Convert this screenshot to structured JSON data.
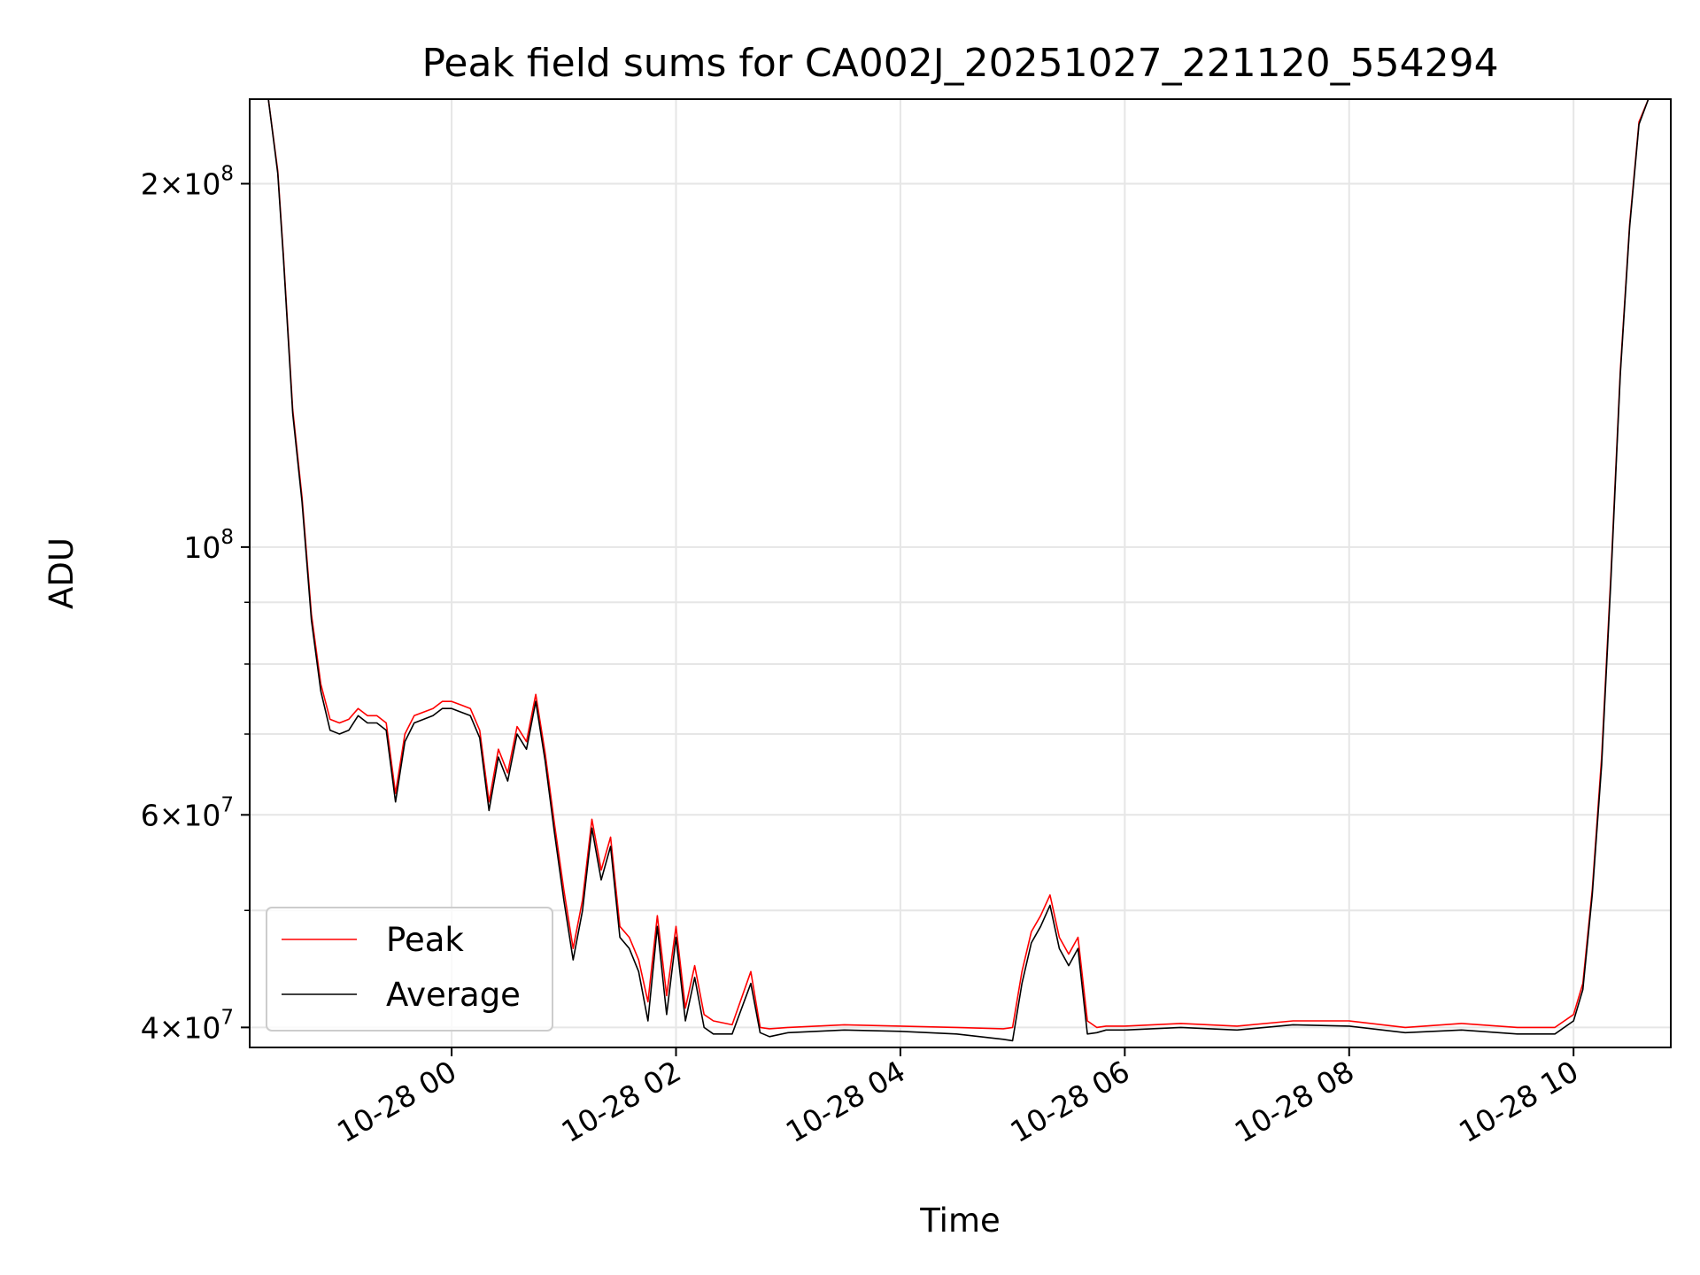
{
  "chart_data": {
    "type": "line",
    "title": "Peak field sums for CA002J_20251027_221120_554294",
    "xlabel": "Time",
    "ylabel": "ADU",
    "yscale": "log",
    "xlim": [
      "2025-10-27 22:12",
      "2025-10-28 10:52"
    ],
    "ylim": [
      38500000,
      235000000
    ],
    "grid": true,
    "legend_position": "lower-left",
    "x_ticks": [
      {
        "value": "2025-10-28 00:00",
        "label": "10-28 00"
      },
      {
        "value": "2025-10-28 02:00",
        "label": "10-28 02"
      },
      {
        "value": "2025-10-28 04:00",
        "label": "10-28 04"
      },
      {
        "value": "2025-10-28 06:00",
        "label": "10-28 06"
      },
      {
        "value": "2025-10-28 08:00",
        "label": "10-28 08"
      },
      {
        "value": "2025-10-28 10:00",
        "label": "10-28 10"
      }
    ],
    "y_ticks": [
      {
        "value": 40000000,
        "mantissa": "4",
        "exponent": "7"
      },
      {
        "value": 60000000,
        "mantissa": "6",
        "exponent": "7"
      },
      {
        "value": 100000000,
        "mantissa": "",
        "exponent": "8"
      },
      {
        "value": 200000000,
        "mantissa": "2",
        "exponent": "8"
      }
    ],
    "y_minor_ticks": [
      50000000,
      70000000,
      80000000,
      90000000
    ],
    "series": [
      {
        "name": "Peak",
        "color": "#ff0000",
        "x": [
          "2025-10-27 22:12",
          "2025-10-27 22:22",
          "2025-10-27 22:27",
          "2025-10-27 22:30",
          "2025-10-27 22:35",
          "2025-10-27 22:40",
          "2025-10-27 22:45",
          "2025-10-27 22:50",
          "2025-10-27 22:55",
          "2025-10-27 23:00",
          "2025-10-27 23:05",
          "2025-10-27 23:10",
          "2025-10-27 23:15",
          "2025-10-27 23:20",
          "2025-10-27 23:25",
          "2025-10-27 23:30",
          "2025-10-27 23:35",
          "2025-10-27 23:40",
          "2025-10-27 23:45",
          "2025-10-27 23:50",
          "2025-10-27 23:55",
          "2025-10-28 00:00",
          "2025-10-28 00:05",
          "2025-10-28 00:10",
          "2025-10-28 00:15",
          "2025-10-28 00:20",
          "2025-10-28 00:25",
          "2025-10-28 00:30",
          "2025-10-28 00:35",
          "2025-10-28 00:40",
          "2025-10-28 00:45",
          "2025-10-28 00:50",
          "2025-10-28 00:55",
          "2025-10-28 01:00",
          "2025-10-28 01:05",
          "2025-10-28 01:10",
          "2025-10-28 01:15",
          "2025-10-28 01:20",
          "2025-10-28 01:25",
          "2025-10-28 01:30",
          "2025-10-28 01:35",
          "2025-10-28 01:40",
          "2025-10-28 01:45",
          "2025-10-28 01:50",
          "2025-10-28 01:55",
          "2025-10-28 02:00",
          "2025-10-28 02:05",
          "2025-10-28 02:10",
          "2025-10-28 02:15",
          "2025-10-28 02:20",
          "2025-10-28 02:30",
          "2025-10-28 02:40",
          "2025-10-28 02:45",
          "2025-10-28 02:50",
          "2025-10-28 03:00",
          "2025-10-28 03:30",
          "2025-10-28 04:00",
          "2025-10-28 04:30",
          "2025-10-28 04:55",
          "2025-10-28 05:00",
          "2025-10-28 05:05",
          "2025-10-28 05:10",
          "2025-10-28 05:15",
          "2025-10-28 05:20",
          "2025-10-28 05:25",
          "2025-10-28 05:30",
          "2025-10-28 05:35",
          "2025-10-28 05:40",
          "2025-10-28 05:45",
          "2025-10-28 05:50",
          "2025-10-28 06:00",
          "2025-10-28 06:30",
          "2025-10-28 07:00",
          "2025-10-28 07:30",
          "2025-10-28 08:00",
          "2025-10-28 08:30",
          "2025-10-28 09:00",
          "2025-10-28 09:30",
          "2025-10-28 09:50",
          "2025-10-28 10:00",
          "2025-10-28 10:05",
          "2025-10-28 10:10",
          "2025-10-28 10:15",
          "2025-10-28 10:20",
          "2025-10-28 10:25",
          "2025-10-28 10:30",
          "2025-10-28 10:35",
          "2025-10-28 10:40",
          "2025-10-28 10:52"
        ],
        "y": [
          235000000,
          235000000,
          205000000,
          175000000,
          130000000,
          110000000,
          88000000,
          77000000,
          72000000,
          71500000,
          72000000,
          73500000,
          72500000,
          72500000,
          71500000,
          62500000,
          70000000,
          72500000,
          73000000,
          73500000,
          74500000,
          74500000,
          74000000,
          73500000,
          70500000,
          61500000,
          68000000,
          65000000,
          71000000,
          69000000,
          75500000,
          67500000,
          59000000,
          52000000,
          46500000,
          51000000,
          59500000,
          54000000,
          57500000,
          48500000,
          47500000,
          45500000,
          42000000,
          49500000,
          42500000,
          48500000,
          41500000,
          45000000,
          41000000,
          40500000,
          40200000,
          44500000,
          40000000,
          39900000,
          40000000,
          40200000,
          40100000,
          40000000,
          39900000,
          40000000,
          44500000,
          48000000,
          49500000,
          51500000,
          47500000,
          46000000,
          47500000,
          40500000,
          40000000,
          40100000,
          40100000,
          40300000,
          40100000,
          40500000,
          40500000,
          40000000,
          40300000,
          40000000,
          40000000,
          41000000,
          43500000,
          52000000,
          67000000,
          95000000,
          140000000,
          185000000,
          225000000,
          235000000,
          235000000
        ]
      },
      {
        "name": "Average",
        "color": "#000000",
        "x": [
          "2025-10-27 22:12",
          "2025-10-27 22:22",
          "2025-10-27 22:27",
          "2025-10-27 22:30",
          "2025-10-27 22:35",
          "2025-10-27 22:40",
          "2025-10-27 22:45",
          "2025-10-27 22:50",
          "2025-10-27 22:55",
          "2025-10-27 23:00",
          "2025-10-27 23:05",
          "2025-10-27 23:10",
          "2025-10-27 23:15",
          "2025-10-27 23:20",
          "2025-10-27 23:25",
          "2025-10-27 23:30",
          "2025-10-27 23:35",
          "2025-10-27 23:40",
          "2025-10-27 23:45",
          "2025-10-27 23:50",
          "2025-10-27 23:55",
          "2025-10-28 00:00",
          "2025-10-28 00:05",
          "2025-10-28 00:10",
          "2025-10-28 00:15",
          "2025-10-28 00:20",
          "2025-10-28 00:25",
          "2025-10-28 00:30",
          "2025-10-28 00:35",
          "2025-10-28 00:40",
          "2025-10-28 00:45",
          "2025-10-28 00:50",
          "2025-10-28 00:55",
          "2025-10-28 01:00",
          "2025-10-28 01:05",
          "2025-10-28 01:10",
          "2025-10-28 01:15",
          "2025-10-28 01:20",
          "2025-10-28 01:25",
          "2025-10-28 01:30",
          "2025-10-28 01:35",
          "2025-10-28 01:40",
          "2025-10-28 01:45",
          "2025-10-28 01:50",
          "2025-10-28 01:55",
          "2025-10-28 02:00",
          "2025-10-28 02:05",
          "2025-10-28 02:10",
          "2025-10-28 02:15",
          "2025-10-28 02:20",
          "2025-10-28 02:30",
          "2025-10-28 02:40",
          "2025-10-28 02:45",
          "2025-10-28 02:50",
          "2025-10-28 03:00",
          "2025-10-28 03:30",
          "2025-10-28 04:00",
          "2025-10-28 04:30",
          "2025-10-28 04:55",
          "2025-10-28 05:00",
          "2025-10-28 05:05",
          "2025-10-28 05:10",
          "2025-10-28 05:15",
          "2025-10-28 05:20",
          "2025-10-28 05:25",
          "2025-10-28 05:30",
          "2025-10-28 05:35",
          "2025-10-28 05:40",
          "2025-10-28 05:45",
          "2025-10-28 05:50",
          "2025-10-28 06:00",
          "2025-10-28 06:30",
          "2025-10-28 07:00",
          "2025-10-28 07:30",
          "2025-10-28 08:00",
          "2025-10-28 08:30",
          "2025-10-28 09:00",
          "2025-10-28 09:30",
          "2025-10-28 09:50",
          "2025-10-28 10:00",
          "2025-10-28 10:05",
          "2025-10-28 10:10",
          "2025-10-28 10:15",
          "2025-10-28 10:20",
          "2025-10-28 10:25",
          "2025-10-28 10:30",
          "2025-10-28 10:35",
          "2025-10-28 10:40",
          "2025-10-28 10:52"
        ],
        "y": [
          235000000,
          235000000,
          204000000,
          174000000,
          129000000,
          109000000,
          87000000,
          76000000,
          70500000,
          70000000,
          70500000,
          72500000,
          71500000,
          71500000,
          70500000,
          61500000,
          69000000,
          71500000,
          72000000,
          72500000,
          73500000,
          73500000,
          73000000,
          72500000,
          69500000,
          60500000,
          67000000,
          64000000,
          70000000,
          68000000,
          74500000,
          66500000,
          58000000,
          51000000,
          45500000,
          50000000,
          58500000,
          53000000,
          56500000,
          47500000,
          46500000,
          44500000,
          40500000,
          48500000,
          41000000,
          47500000,
          40500000,
          44000000,
          40000000,
          39500000,
          39500000,
          43500000,
          39600000,
          39300000,
          39600000,
          39800000,
          39700000,
          39500000,
          39100000,
          39000000,
          43500000,
          47000000,
          48500000,
          50500000,
          46500000,
          45000000,
          46500000,
          39500000,
          39600000,
          39800000,
          39800000,
          40000000,
          39800000,
          40200000,
          40100000,
          39600000,
          39800000,
          39500000,
          39500000,
          40500000,
          43000000,
          51500000,
          66000000,
          94000000,
          139000000,
          184000000,
          224000000,
          235000000,
          235000000
        ]
      }
    ]
  }
}
